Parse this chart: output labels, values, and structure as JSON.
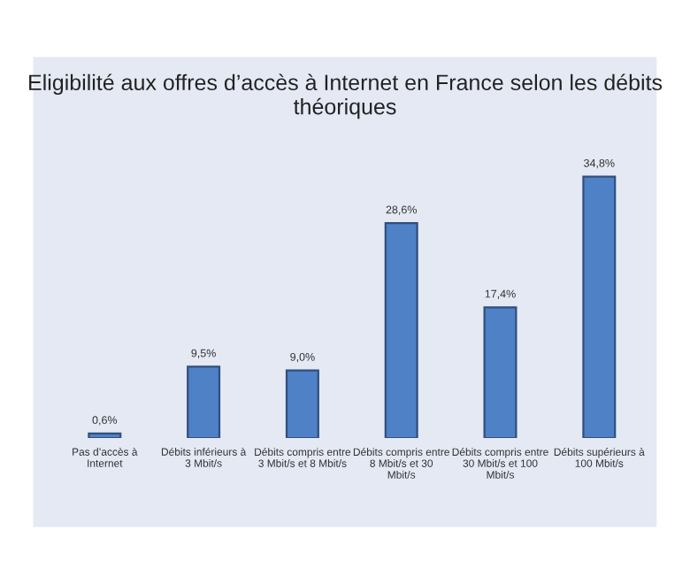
{
  "chart_data": {
    "type": "bar",
    "title": "Eligibilité aux offres d’accès à Internet en France selon les débits théoriques",
    "categories": [
      "Pas d’accès à Internet",
      "Débits inférieurs à 3 Mbit/s",
      "Débits compris entre 3 Mbit/s et 8 Mbit/s",
      "Débits compris entre 8 Mbit/s et 30 Mbit/s",
      "Débits compris entre 30 Mbit/s et 100 Mbit/s",
      "Débits supérieurs à 100 Mbit/s"
    ],
    "values": [
      0.6,
      9.5,
      9.0,
      28.6,
      17.4,
      34.8
    ],
    "value_labels": [
      "0,6%",
      "9,5%",
      "9,0%",
      "28,6%",
      "17,4%",
      "34,8%"
    ],
    "color": "#4f81c7",
    "grid": false,
    "legend": false
  }
}
